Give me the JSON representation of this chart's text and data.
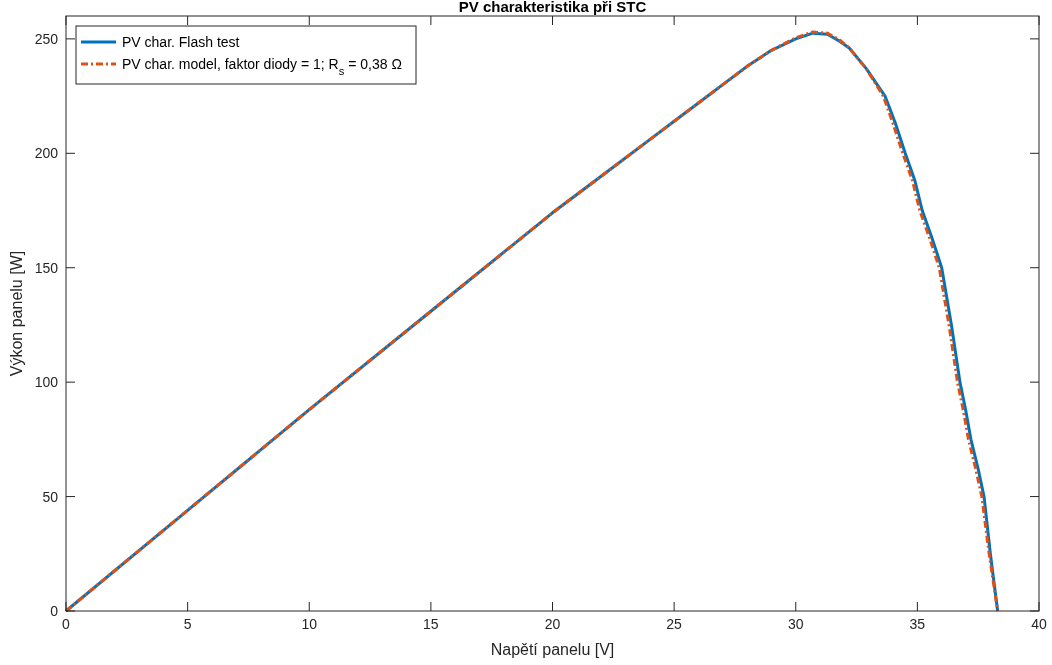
{
  "chart_data": {
    "type": "line",
    "title": "PV charakteristika při STC",
    "xlabel": "Napětí panelu [V]",
    "ylabel": "Výkon panelu [W]",
    "xlim": [
      0,
      40
    ],
    "xticks": [
      0,
      5,
      10,
      15,
      20,
      25,
      30,
      35,
      40
    ],
    "ylim": [
      0,
      260
    ],
    "yticks": [
      0,
      50,
      100,
      150,
      200,
      250
    ],
    "grid": false,
    "legend": "top left",
    "series": [
      {
        "name": "PV char. Flash test",
        "color": "#0072bd",
        "line_style": "solid",
        "x": [
          0,
          5,
          10,
          15,
          20,
          22,
          24,
          25,
          26,
          27,
          28,
          29,
          30,
          30.7,
          31.3,
          31.8,
          32.2,
          32.9,
          33.67,
          34.1,
          34.5,
          34.9,
          35.2,
          35.6,
          36.0,
          36.4,
          36.75,
          37.0,
          37.2,
          37.5,
          37.74,
          38.0,
          38.3
        ],
        "values": [
          0,
          44,
          88,
          131,
          174,
          190,
          206,
          214,
          222,
          230,
          238,
          245,
          250,
          252.5,
          252,
          249,
          246,
          237,
          225,
          213,
          200,
          188,
          175,
          163,
          150,
          125,
          100,
          87,
          75,
          62,
          50,
          25,
          0
        ]
      },
      {
        "name": "PV char. model, faktor diody = 1; R$_{s}$ = 0,38 Ω",
        "color": "#d95319",
        "line_style": "dashed",
        "x": [
          0,
          5,
          10,
          15,
          20,
          22,
          24,
          25,
          26,
          27,
          28,
          29,
          30,
          30.7,
          31.3,
          31.8,
          32.2,
          32.9,
          33.6,
          34.0,
          34.4,
          34.8,
          35.1,
          35.5,
          35.9,
          36.3,
          36.65,
          36.9,
          37.1,
          37.4,
          37.65,
          37.95,
          38.3
        ],
        "values": [
          0,
          44,
          88,
          131,
          174,
          190,
          206,
          214,
          222,
          230,
          238,
          245,
          250.5,
          253,
          252.5,
          249.5,
          246,
          237,
          225,
          213,
          200,
          188,
          175,
          163,
          150,
          125,
          100,
          87,
          75,
          62,
          50,
          25,
          0
        ]
      }
    ]
  }
}
